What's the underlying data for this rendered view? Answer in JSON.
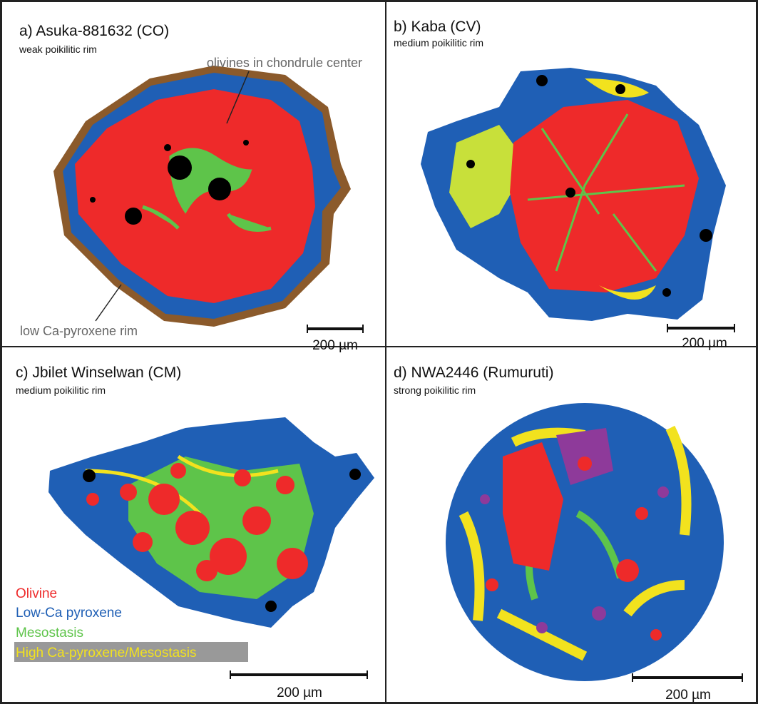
{
  "panels": [
    {
      "title": "a) Asuka-881632 (CO)",
      "subtitle": "weak poikilitic rim",
      "annotations": [
        "olivines in chondrule center",
        "low Ca-pyroxene rim"
      ],
      "scale_label": "200 µm"
    },
    {
      "title": "b) Kaba (CV)",
      "subtitle": "medium poikilitic rim",
      "scale_label": "200 µm"
    },
    {
      "title": "c) Jbilet Winselwan (CM)",
      "subtitle": "medium poikilitic rim",
      "scale_label": "200 µm"
    },
    {
      "title": "d) NWA2446 (Rumuruti)",
      "subtitle": "strong poikilitic rim",
      "scale_label": "200 µm"
    }
  ],
  "legend": [
    "Olivine",
    "Low-Ca pyroxene",
    "Mesostasis",
    "High Ca-pyroxene/Mesostasis"
  ]
}
